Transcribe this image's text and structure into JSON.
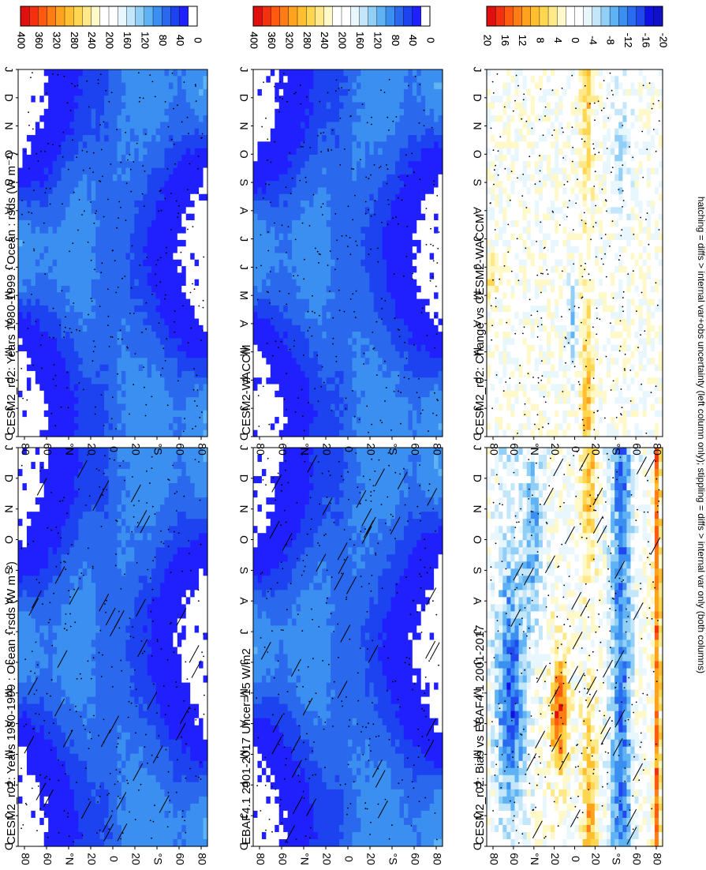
{
  "footnote": "hatching = diffs > internal var+obs uncertainty (left column only); stippling = diffs > internal var only (both columns)",
  "chart_data": [
    {
      "type": "heatmap",
      "id": "tl",
      "title": "CESM2_r02: Years 1980-1999 : Ocean : rsds (W m⁻²)",
      "hatching": true,
      "stippling": true,
      "kind": "rsds",
      "colorbar": {
        "ticks": [
          "400",
          "360",
          "320",
          "280",
          "240",
          "200",
          "160",
          "120",
          "80",
          "40",
          "0"
        ]
      }
    },
    {
      "type": "heatmap",
      "id": "tr",
      "title": "CESM2_r02: Years 1980-1999 : Ocean : rsds (W m⁻²)",
      "hatching": false,
      "stippling": true,
      "kind": "rsds",
      "colorbar": {
        "ticks": [
          "400",
          "360",
          "320",
          "280",
          "240",
          "200",
          "160",
          "120",
          "80",
          "40",
          "0"
        ]
      }
    },
    {
      "type": "heatmap",
      "id": "ml",
      "title": "EBAF4.1 2001-2017 Uncer=15 W/m2",
      "hatching": true,
      "stippling": true,
      "kind": "rsds",
      "colorbar": {
        "ticks": [
          "400",
          "360",
          "320",
          "280",
          "240",
          "200",
          "160",
          "120",
          "80",
          "40",
          "0"
        ]
      }
    },
    {
      "type": "heatmap",
      "id": "mr",
      "title": "CESM2-WACCM",
      "hatching": false,
      "stippling": true,
      "kind": "rsds",
      "colorbar": {
        "ticks": [
          "400",
          "360",
          "320",
          "280",
          "240",
          "200",
          "160",
          "120",
          "80",
          "40",
          "0"
        ]
      }
    },
    {
      "type": "heatmap",
      "id": "bl",
      "title": "CESM2_r02: Bias vs EBAF4.1 2001-2017",
      "hatching": true,
      "stippling": true,
      "kind": "bias",
      "colorbar": {
        "ticks": [
          "20",
          "16",
          "12",
          "8",
          "4",
          "0",
          "-4",
          "-8",
          "-12",
          "-16",
          "-20"
        ]
      }
    },
    {
      "type": "heatmap",
      "id": "br",
      "title": "CESM2_r02: Change vs CESM2-WACCM",
      "hatching": false,
      "stippling": true,
      "kind": "change",
      "colorbar": {
        "ticks": [
          "20",
          "16",
          "12",
          "8",
          "4",
          "0",
          "-4",
          "-8",
          "-12",
          "-16",
          "-20"
        ]
      }
    }
  ],
  "axes": {
    "months": [
      "D",
      "J",
      "F",
      "M",
      "A",
      "M",
      "J",
      "J",
      "A",
      "S",
      "O",
      "N",
      "D",
      "J"
    ],
    "lat_ticks": [
      "80",
      "60",
      "°N",
      "20",
      "0",
      "20",
      "°S",
      "60",
      "80"
    ]
  },
  "colors": {
    "rsds": [
      "#ffffff",
      "#2020ff",
      "#1d43f1",
      "#2a69ee",
      "#3b8ff0",
      "#5fb3f4",
      "#92cff7",
      "#c4e6fb",
      "#e8f6fe",
      "#ffffff",
      "#ffffff",
      "#fff8c8",
      "#ffe98a",
      "#ffd650",
      "#ffbf30",
      "#ffa21e",
      "#ff7d14",
      "#ff5a10",
      "#f43010",
      "#e01010",
      "#ffffff"
    ],
    "diverging": [
      "#1010c8",
      "#1010e0",
      "#2048ee",
      "#2a6cef",
      "#3b8ff0",
      "#5fb3f4",
      "#92cff7",
      "#c4e6fb",
      "#e8f6fe",
      "#ffffff",
      "#ffffff",
      "#fff8c8",
      "#ffe98a",
      "#ffd650",
      "#ffbf30",
      "#ffa21e",
      "#ff7d14",
      "#ff5a10",
      "#f43010",
      "#e01010"
    ]
  }
}
